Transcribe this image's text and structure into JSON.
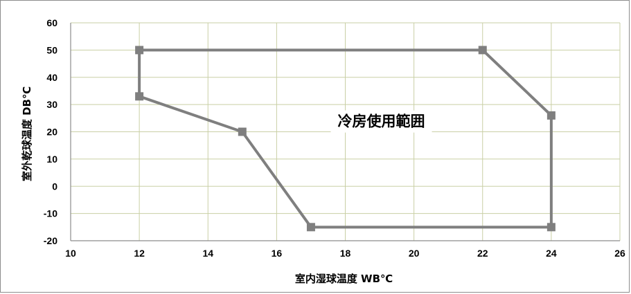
{
  "chart_data": {
    "type": "scatter",
    "xlabel": "室内湿球温度 WB℃",
    "ylabel": "室外乾球温度 DB℃",
    "xlim": [
      10,
      26
    ],
    "ylim": [
      -20,
      60
    ],
    "x_ticks": [
      10,
      12,
      14,
      16,
      18,
      20,
      22,
      24,
      26
    ],
    "y_ticks": [
      60,
      50,
      40,
      30,
      20,
      10,
      0,
      -10,
      -20
    ],
    "grid": true,
    "annotation": "冷房使用範囲",
    "series": [
      {
        "x": [
          12,
          22,
          24,
          24,
          17,
          15,
          12,
          12
        ],
        "y": [
          50,
          50,
          26,
          -15,
          -15,
          20,
          33,
          50
        ],
        "closed": true
      }
    ],
    "colors": {
      "line": "#7f7f7f",
      "grid": "#c9cfa5",
      "axis": "#8c8c8c"
    }
  }
}
